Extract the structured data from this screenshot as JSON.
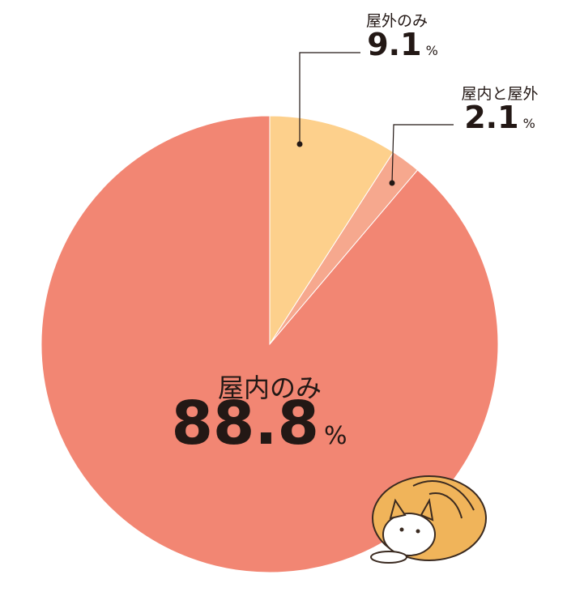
{
  "chart_data": {
    "type": "pie",
    "categories": [
      "屋外のみ",
      "屋内と屋外",
      "屋内のみ"
    ],
    "values": [
      9.1,
      2.1,
      88.8
    ],
    "colors": [
      "#fdd08c",
      "#f6a88e",
      "#f28673"
    ],
    "unit": "%"
  }
}
